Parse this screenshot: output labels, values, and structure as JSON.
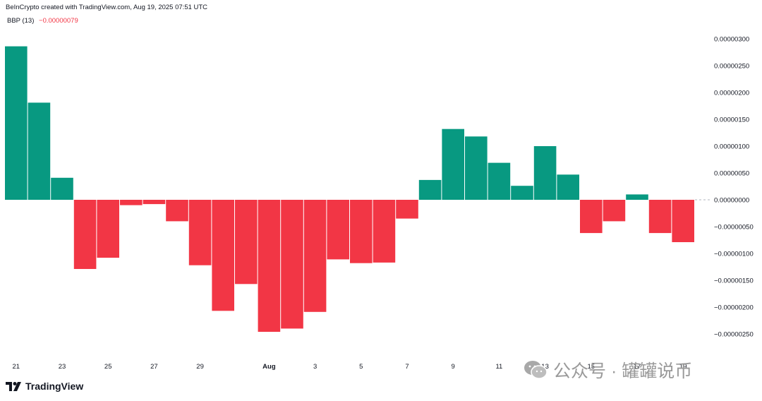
{
  "header": {
    "attribution": "BeInCrypto created with TradingView.com, Aug 19, 2025 07:51 UTC"
  },
  "legend": {
    "indicator": "BBP (13)",
    "current_value": "−0.00000079"
  },
  "brand": {
    "name": "TradingView"
  },
  "watermark": {
    "text": "公众号 · 罐罐说币"
  },
  "colors": {
    "positive": "#089981",
    "negative": "#f23645",
    "axis_text": "#131722"
  },
  "chart_data": {
    "type": "bar",
    "indicator": "BBP (13)",
    "categories": [
      "Jul 21",
      "Jul 22",
      "Jul 23",
      "Jul 24",
      "Jul 25",
      "Jul 26",
      "Jul 27",
      "Jul 28",
      "Jul 29",
      "Jul 30",
      "Jul 31",
      "Aug 1",
      "Aug 2",
      "Aug 3",
      "Aug 4",
      "Aug 5",
      "Aug 6",
      "Aug 7",
      "Aug 8",
      "Aug 9",
      "Aug 10",
      "Aug 11",
      "Aug 12",
      "Aug 13",
      "Aug 14",
      "Aug 15",
      "Aug 16",
      "Aug 17",
      "Aug 18",
      "Aug 19"
    ],
    "values": [
      2.86e-06,
      1.81e-06,
      4.1e-07,
      -1.29e-06,
      -1.08e-06,
      -1e-07,
      -8e-08,
      -4e-07,
      -1.22e-06,
      -2.07e-06,
      -1.57e-06,
      -2.46e-06,
      -2.4e-06,
      -2.09e-06,
      -1.11e-06,
      -1.18e-06,
      -1.17e-06,
      -3.5e-07,
      3.7e-07,
      1.32e-06,
      1.18e-06,
      6.9e-07,
      2.6e-07,
      1e-06,
      4.7e-07,
      -6.2e-07,
      -4e-07,
      1e-07,
      -6.2e-07,
      -7.9e-07
    ],
    "ylim": [
      -2.85e-06,
      3.05e-06
    ],
    "y_ticks": [
      {
        "value": 3e-06,
        "label": "0.00000300"
      },
      {
        "value": 2.5e-06,
        "label": "0.00000250"
      },
      {
        "value": 2e-06,
        "label": "0.00000200"
      },
      {
        "value": 1.5e-06,
        "label": "0.00000150"
      },
      {
        "value": 1e-06,
        "label": "0.00000100"
      },
      {
        "value": 5e-07,
        "label": "0.00000050"
      },
      {
        "value": 0,
        "label": "0.00000000"
      },
      {
        "value": -5e-07,
        "label": "−0.00000050"
      },
      {
        "value": -1e-06,
        "label": "−0.00000100"
      },
      {
        "value": -1.5e-06,
        "label": "−0.00000150"
      },
      {
        "value": -2e-06,
        "label": "−0.00000200"
      },
      {
        "value": -2.5e-06,
        "label": "−0.00000250"
      }
    ],
    "x_ticks": [
      {
        "index": 0,
        "label": "21"
      },
      {
        "index": 2,
        "label": "23"
      },
      {
        "index": 4,
        "label": "25"
      },
      {
        "index": 6,
        "label": "27"
      },
      {
        "index": 8,
        "label": "29"
      },
      {
        "index": 11,
        "label": "Aug"
      },
      {
        "index": 13,
        "label": "3"
      },
      {
        "index": 15,
        "label": "5"
      },
      {
        "index": 17,
        "label": "7"
      },
      {
        "index": 19,
        "label": "9"
      },
      {
        "index": 21,
        "label": "11"
      },
      {
        "index": 23,
        "label": "13"
      },
      {
        "index": 25,
        "label": "15"
      },
      {
        "index": 27,
        "label": "17"
      },
      {
        "index": 29,
        "label": "19"
      }
    ],
    "grid": false,
    "legend": "top-left"
  }
}
